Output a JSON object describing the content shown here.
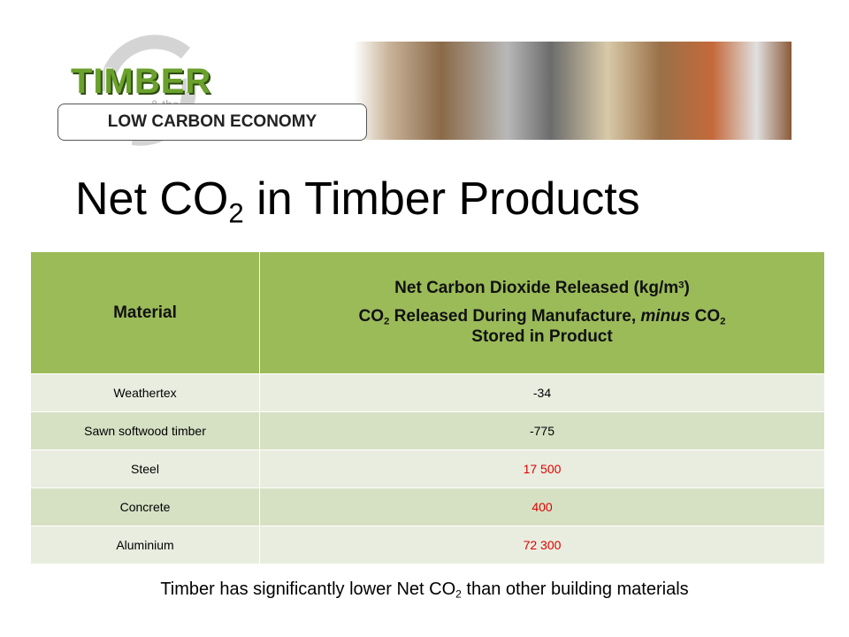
{
  "header": {
    "logo_title": "TIMBER",
    "logo_connector": "& the",
    "logo_subtitle": "LOW CARBON ECONOMY"
  },
  "title": {
    "parts": [
      "Net CO",
      "2",
      " in Timber Products"
    ]
  },
  "table": {
    "header_material": "Material",
    "header_value_line1": [
      "Net Carbon Dioxide Released (kg/m",
      "3",
      ")"
    ],
    "header_value_line2": [
      "CO",
      "2",
      " Released During Manufacture, ",
      "minus",
      " CO",
      "2",
      " Stored in Product"
    ],
    "header_color": "#9bbb59",
    "row_colors": [
      "#e9eddf",
      "#d6e1c4"
    ],
    "rows": [
      {
        "material": "Weathertex",
        "value": "-34",
        "color": "#000000"
      },
      {
        "material": "Sawn softwood timber",
        "value": "-775",
        "color": "#000000"
      },
      {
        "material": "Steel",
        "value": "17 500",
        "color": "#e00000"
      },
      {
        "material": "Concrete",
        "value": "400",
        "color": "#e00000"
      },
      {
        "material": "Aluminium",
        "value": "72 300",
        "color": "#e00000"
      }
    ]
  },
  "footer": {
    "parts": [
      "Timber has significantly lower Net CO",
      "2",
      " than other building materials"
    ]
  }
}
